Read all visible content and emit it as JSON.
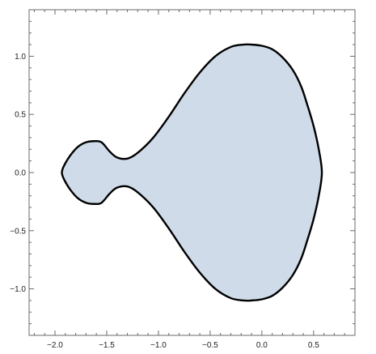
{
  "chart_data": {
    "type": "area",
    "title": "",
    "xlabel": "",
    "ylabel": "",
    "xlim": [
      -2.25,
      0.9
    ],
    "ylim": [
      -1.4,
      1.4
    ],
    "grid": false,
    "frame": true,
    "colors": {
      "fill": "#cfdbe9",
      "stroke": "#000000",
      "frame": "#6a6a6a",
      "background": "#ffffff"
    },
    "x_ticks": [
      {
        "value": -2.0,
        "label": "−2.0"
      },
      {
        "value": -1.5,
        "label": "−1.5"
      },
      {
        "value": -1.0,
        "label": "−1.0"
      },
      {
        "value": -0.5,
        "label": "−0.5"
      },
      {
        "value": 0.0,
        "label": "0.0"
      },
      {
        "value": 0.5,
        "label": "0.5"
      }
    ],
    "y_ticks": [
      {
        "value": 1.0,
        "label": "1.0"
      },
      {
        "value": 0.5,
        "label": "0.5"
      },
      {
        "value": 0.0,
        "label": "0.0"
      },
      {
        "value": -0.5,
        "label": "−0.5"
      },
      {
        "value": -1.0,
        "label": "−1.0"
      }
    ],
    "x_minor_step": 0.1,
    "y_minor_step": 0.1,
    "series": [
      {
        "x": [
          0.58,
          0.55,
          0.5,
          0.44,
          0.38,
          0.3,
          0.2,
          0.1,
          0.0,
          -0.1,
          -0.18,
          -0.3,
          -0.45,
          -0.6,
          -0.75,
          -0.9,
          -1.05,
          -1.2,
          -1.3,
          -1.4,
          -1.47,
          -1.55,
          -1.62,
          -1.7,
          -1.78,
          -1.85,
          -1.9,
          -1.93,
          -1.93,
          -1.9,
          -1.85,
          -1.78,
          -1.7,
          -1.62,
          -1.55,
          -1.47,
          -1.4,
          -1.3,
          -1.2,
          -1.05,
          -0.9,
          -0.75,
          -0.6,
          -0.45,
          -0.3,
          -0.18,
          -0.1,
          0.0,
          0.1,
          0.2,
          0.3,
          0.38,
          0.44,
          0.5,
          0.55,
          0.58
        ],
        "y": [
          0.0,
          0.2,
          0.4,
          0.58,
          0.74,
          0.88,
          0.99,
          1.06,
          1.09,
          1.1,
          1.1,
          1.08,
          1.0,
          0.86,
          0.68,
          0.48,
          0.3,
          0.17,
          0.12,
          0.13,
          0.18,
          0.26,
          0.27,
          0.26,
          0.22,
          0.15,
          0.08,
          0.02,
          -0.02,
          -0.08,
          -0.15,
          -0.22,
          -0.26,
          -0.27,
          -0.26,
          -0.18,
          -0.13,
          -0.12,
          -0.17,
          -0.3,
          -0.48,
          -0.68,
          -0.86,
          -1.0,
          -1.08,
          -1.1,
          -1.1,
          -1.09,
          -1.06,
          -0.99,
          -0.88,
          -0.74,
          -0.58,
          -0.4,
          -0.2,
          0.0
        ]
      }
    ]
  }
}
